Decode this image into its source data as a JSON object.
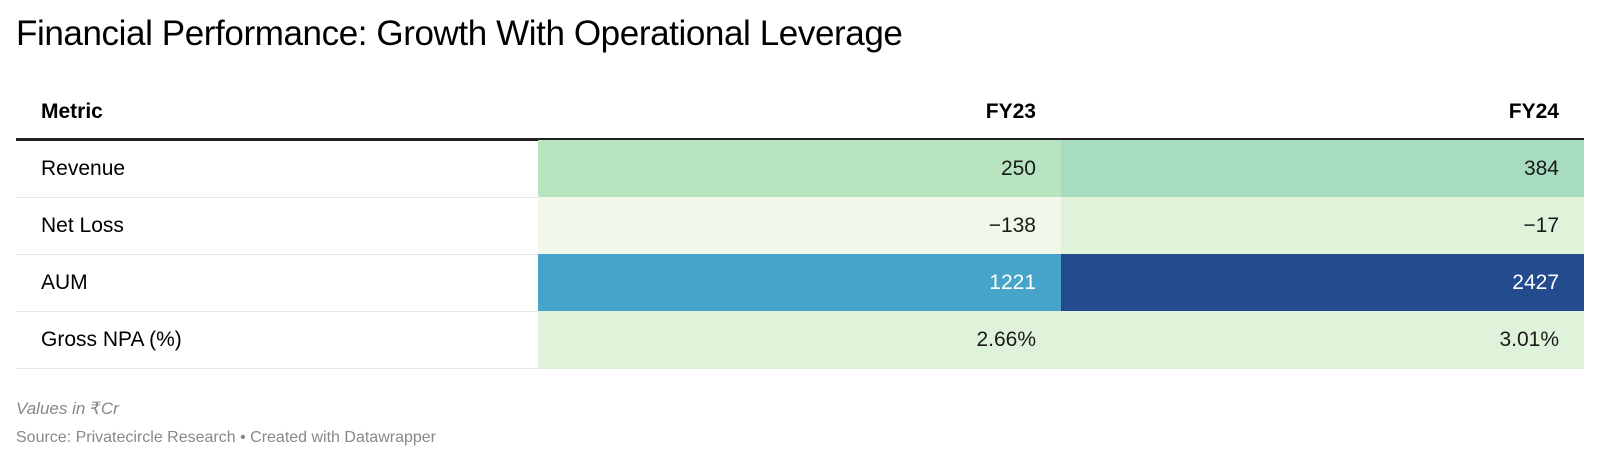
{
  "title": "Financial Performance: Growth With Operational Leverage",
  "table": {
    "headers": [
      "Metric",
      "FY23",
      "FY24"
    ],
    "rows": [
      {
        "metric": "Revenue",
        "fy23": "250",
        "fy24": "384"
      },
      {
        "metric": "Net Loss",
        "fy23": "−138",
        "fy24": "−17"
      },
      {
        "metric": "AUM",
        "fy23": "1221",
        "fy24": "2427"
      },
      {
        "metric": "Gross NPA (%)",
        "fy23": "2.66%",
        "fy24": "3.01%"
      }
    ]
  },
  "cell_colors": {
    "rows": [
      {
        "fy23": {
          "bg": "#b9e4c0",
          "fg": "#1a1a1a"
        },
        "fy24": {
          "bg": "#a8dcc0",
          "fg": "#1a1a1a"
        }
      },
      {
        "fy23": {
          "bg": "#eff8e9",
          "fg": "#1a1a1a"
        },
        "fy24": {
          "bg": "#dff2da",
          "fg": "#1a1a1a"
        }
      },
      {
        "fy23": {
          "bg": "#46a3c9",
          "fg": "#ffffff"
        },
        "fy24": {
          "bg": "#244b8d",
          "fg": "#ffffff"
        }
      },
      {
        "fy23": {
          "bg": "#dff2da",
          "fg": "#1a1a1a"
        },
        "fy24": {
          "bg": "#dff2da",
          "fg": "#1a1a1a"
        }
      }
    ]
  },
  "chart_data": {
    "type": "table",
    "title": "Financial Performance: Growth With Operational Leverage",
    "columns": [
      "Metric",
      "FY23",
      "FY24"
    ],
    "rows": [
      [
        "Revenue",
        250,
        384
      ],
      [
        "Net Loss",
        -138,
        -17
      ],
      [
        "AUM",
        1221,
        2427
      ],
      [
        "Gross NPA (%)",
        2.66,
        3.01
      ]
    ]
  },
  "footer": {
    "note": "Values in ₹Cr",
    "source": "Source: Privatecircle Research • Created with Datawrapper"
  }
}
